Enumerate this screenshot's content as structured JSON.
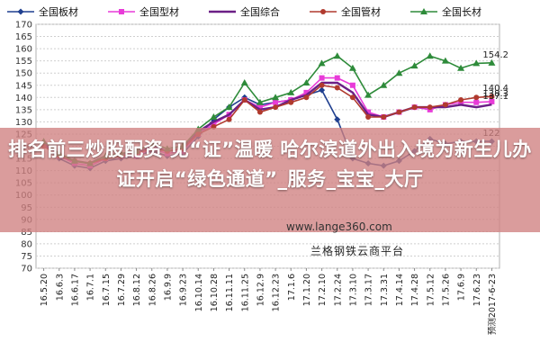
{
  "chart_data": {
    "type": "line",
    "yaxis": {
      "min": 70,
      "max": 170,
      "step": 5
    },
    "grid": true,
    "legend_position": "top",
    "x_tick_labels": [
      "16.5.20",
      "16.6.3",
      "16.6.17",
      "16.7.1",
      "16.7.15",
      "16.7.29",
      "16.8.12",
      "16.8.26",
      "16.9.9",
      "16.9.23",
      "16.10.14",
      "16.10.28",
      "16.11.11",
      "16.11.25",
      "16.12.9",
      "16.12.23",
      "17.1.6",
      "17.1.20",
      "17.2.10",
      "17.2.24",
      "17.3.10",
      "17.3.17",
      "17.3.31",
      "17.4.14",
      "17.4.28",
      "17.5.12",
      "17.5.26",
      "17.6.9",
      "17.6.23",
      "预测2017-6-23"
    ],
    "series": [
      {
        "name": "全国板材",
        "color": "#1f3f8f",
        "marker": "diamond",
        "values": [
          121,
          115,
          112,
          111,
          114,
          115,
          116,
          118,
          116,
          117,
          124,
          131,
          136,
          140,
          137,
          138,
          139,
          141,
          143,
          131,
          115,
          113,
          112,
          114,
          118,
          123,
          121,
          122,
          122,
          122
        ]
      },
      {
        "name": "全国型材",
        "color": "#e83bd8",
        "marker": "square",
        "values": [
          121,
          116,
          113,
          112,
          115,
          116,
          116,
          119,
          117,
          118,
          125,
          129,
          133,
          139,
          136,
          138,
          139,
          142,
          148,
          148,
          145,
          134,
          132,
          134,
          136,
          135,
          137,
          138,
          138,
          138.3
        ]
      },
      {
        "name": "全国综合",
        "color": "#6b1f86",
        "marker": "none",
        "values": [
          121,
          116,
          114,
          113,
          116,
          117,
          117,
          120,
          118,
          119,
          126,
          130,
          133,
          139,
          135,
          136,
          139,
          141,
          146,
          146,
          142,
          133,
          132,
          134,
          136,
          136,
          136,
          137,
          136,
          137.1
        ]
      },
      {
        "name": "全国管材",
        "color": "#b03a2e",
        "marker": "circle",
        "values": [
          120,
          116,
          114,
          113,
          115,
          116,
          117,
          119,
          118,
          119,
          125,
          128,
          131,
          139,
          134,
          136,
          138,
          140,
          145,
          144,
          140,
          132,
          132,
          134,
          136,
          136,
          137,
          139,
          140,
          140.4
        ]
      },
      {
        "name": "全国长材",
        "color": "#2e8b3a",
        "marker": "triangle",
        "values": [
          122,
          117,
          114,
          113,
          116,
          117,
          118,
          121,
          119,
          120,
          127,
          132,
          136,
          146,
          138,
          140,
          142,
          146,
          154,
          157,
          152,
          141,
          145,
          150,
          153,
          157,
          155,
          152,
          154,
          154.2
        ]
      }
    ],
    "data_labels": [
      {
        "series": "全国长材",
        "text": "154.2"
      },
      {
        "series": "全国管材",
        "text": "140.4"
      },
      {
        "series": "全国型材",
        "text": "138.3"
      },
      {
        "series": "全国综合",
        "text": "137.1"
      },
      {
        "series": "全国板材",
        "text": "122"
      }
    ]
  },
  "overlay": {
    "banner_text": "排名前三炒股配资 见“证”温暖 哈尔滨道外出入境为新生儿办证开启“绿色通道”_服务_宝宝_大厅",
    "watermark_url": "www.lange360.com",
    "watermark_name": "兰格钢铁云商平台"
  }
}
